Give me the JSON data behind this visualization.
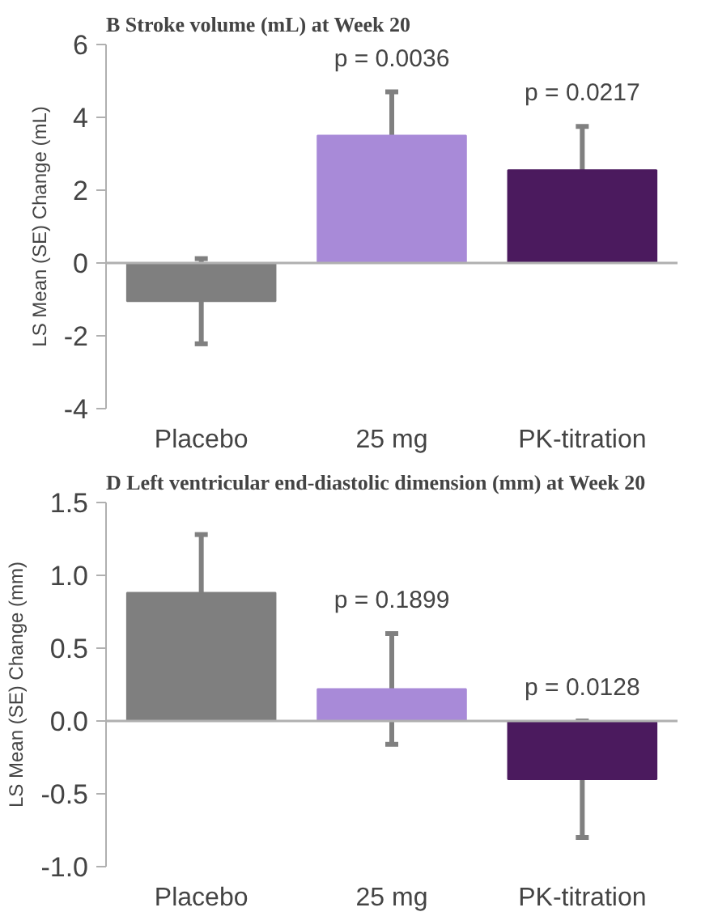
{
  "chart_data": [
    {
      "type": "bar",
      "title": "B  Stroke volume (mL) at Week 20",
      "ylabel": "LS Mean (SE) Change (mL)",
      "categories": [
        "Placebo",
        "25 mg",
        "PK-titration"
      ],
      "values": [
        -1.05,
        3.5,
        2.55
      ],
      "errors": [
        1.17,
        1.2,
        1.2
      ],
      "colors": [
        "#7f7f7f",
        "#a88ad8",
        "#4b1a5e"
      ],
      "ylim": [
        -4,
        6
      ],
      "yticks": [
        -4,
        -2,
        0,
        2,
        4,
        6
      ],
      "annotations": [
        {
          "text": "p = 0.0036",
          "x": "25 mg",
          "y": 4.7
        },
        {
          "text": "p = 0.0217",
          "x": "PK-titration",
          "y": 3.75
        }
      ]
    },
    {
      "type": "bar",
      "title": "D  Left ventricular end-diastolic dimension (mm) at Week 20",
      "ylabel": "LS Mean (SE) Change (mm)",
      "categories": [
        "Placebo",
        "25 mg",
        "PK-titration"
      ],
      "values": [
        0.88,
        0.22,
        -0.4
      ],
      "errors": [
        0.4,
        0.38,
        0.4
      ],
      "colors": [
        "#7f7f7f",
        "#a88ad8",
        "#4b1a5e"
      ],
      "ylim": [
        -1.0,
        1.5
      ],
      "yticks": [
        {
          "value": -1.0,
          "label": "-1.0"
        },
        {
          "value": -0.5,
          "label": "-0.5"
        },
        {
          "value": 0.0,
          "label": "0.0"
        },
        {
          "value": 0.5,
          "label": "0.5"
        },
        {
          "value": 1.0,
          "label": "1.0"
        },
        {
          "value": 1.5,
          "label": "1.5"
        }
      ],
      "annotations": [
        {
          "text": "p = 0.1899",
          "x": "25 mg",
          "y": 0.6
        },
        {
          "text": "p = 0.0128",
          "x": "PK-titration",
          "y": 0.0
        }
      ]
    }
  ]
}
